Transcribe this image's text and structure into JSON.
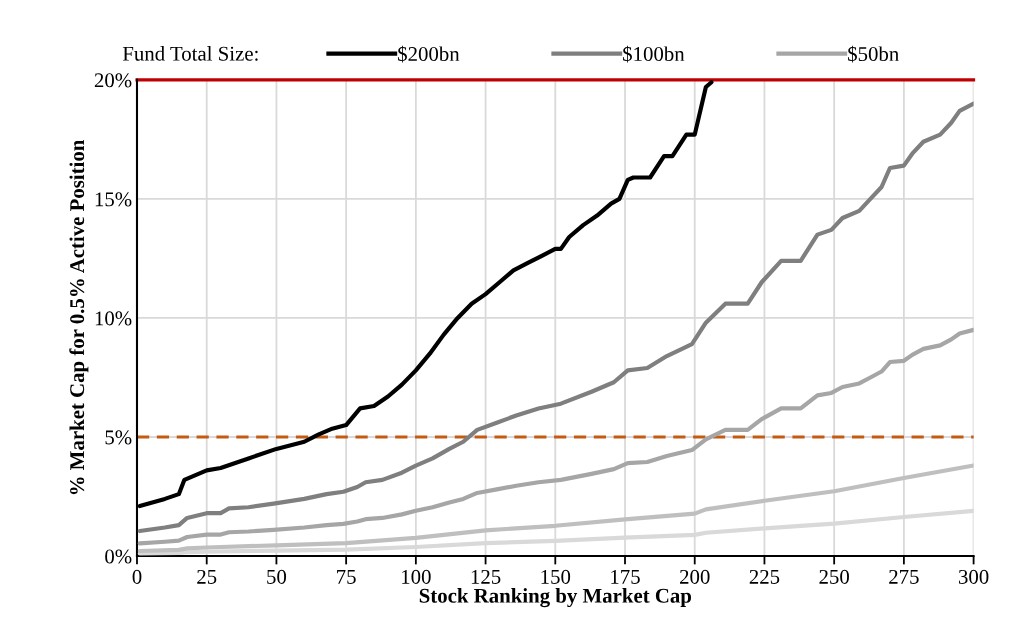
{
  "chart_data": {
    "type": "line",
    "xlabel": "Stock Ranking by Market Cap",
    "ylabel": "% Market Cap for 0.5% Active Position",
    "legend_title": "Fund Total Size:",
    "legend": "top",
    "xlim": [
      0,
      300
    ],
    "xticks": [
      0,
      25,
      50,
      75,
      100,
      125,
      150,
      175,
      200,
      225,
      250,
      275,
      300
    ],
    "ylim": [
      0,
      20
    ],
    "yticks": [
      {
        "value": 0,
        "label": "0%"
      },
      {
        "value": 5,
        "label": "5%"
      },
      {
        "value": 10,
        "label": "10%"
      },
      {
        "value": 15,
        "label": "15%"
      },
      {
        "value": 20,
        "label": "20%"
      }
    ],
    "grid": true,
    "marker": "none",
    "line_style": "solid",
    "ref_lines": [
      {
        "axis": "y",
        "value": 20,
        "label": null,
        "color": "#c00000",
        "line_style": "solid"
      },
      {
        "axis": "y",
        "value": 5,
        "label": null,
        "color": "#c55a11",
        "line_style": "dashed"
      }
    ],
    "series": [
      {
        "name": "$200bn",
        "color": "#000000",
        "x": [
          1,
          10,
          15,
          17,
          25,
          30,
          35,
          40,
          50,
          60,
          65,
          70,
          75,
          80,
          85,
          90,
          95,
          100,
          105,
          110,
          115,
          120,
          125,
          130,
          135,
          140,
          145,
          150,
          152,
          155,
          160,
          165,
          170,
          173,
          176,
          178,
          184,
          189,
          192,
          197,
          200,
          204,
          206
        ],
        "values": [
          2.1,
          2.4,
          2.6,
          3.2,
          3.6,
          3.7,
          3.9,
          4.1,
          4.5,
          4.8,
          5.1,
          5.35,
          5.5,
          6.2,
          6.3,
          6.7,
          7.2,
          7.8,
          8.5,
          9.3,
          10.0,
          10.6,
          11.0,
          11.5,
          12.0,
          12.3,
          12.6,
          12.9,
          12.9,
          13.4,
          13.9,
          14.3,
          14.8,
          15.0,
          15.8,
          15.9,
          15.9,
          16.8,
          16.8,
          17.7,
          17.7,
          19.7,
          19.9
        ]
      },
      {
        "name": "$100bn",
        "color": "#7f7f7f",
        "x": [
          1,
          10,
          15,
          18,
          25,
          30,
          33,
          40,
          49,
          60,
          68,
          74,
          79,
          82,
          88,
          95,
          100,
          106,
          112,
          117,
          122,
          129,
          136,
          144,
          152,
          163,
          171,
          176,
          183,
          190,
          199,
          204,
          211,
          219,
          224,
          231,
          238,
          244,
          249,
          253,
          259,
          263,
          267,
          270,
          275,
          278,
          282,
          288,
          292,
          295,
          300
        ],
        "values": [
          1.05,
          1.2,
          1.3,
          1.6,
          1.8,
          1.8,
          2.0,
          2.05,
          2.2,
          2.4,
          2.6,
          2.7,
          2.9,
          3.1,
          3.2,
          3.5,
          3.8,
          4.1,
          4.5,
          4.8,
          5.3,
          5.6,
          5.9,
          6.2,
          6.4,
          6.9,
          7.3,
          7.8,
          7.9,
          8.4,
          8.9,
          9.8,
          10.6,
          10.6,
          11.5,
          12.4,
          12.4,
          13.5,
          13.7,
          14.2,
          14.5,
          15.0,
          15.5,
          16.3,
          16.4,
          16.9,
          17.4,
          17.7,
          18.2,
          18.7,
          19.0
        ]
      },
      {
        "name": "$50bn",
        "color": "#a6a6a6",
        "x": [
          1,
          10,
          15,
          18,
          25,
          30,
          33,
          40,
          49,
          60,
          68,
          74,
          79,
          82,
          88,
          95,
          100,
          106,
          112,
          117,
          122,
          129,
          136,
          144,
          152,
          163,
          171,
          176,
          183,
          190,
          199,
          204,
          211,
          219,
          224,
          231,
          238,
          244,
          249,
          253,
          259,
          263,
          267,
          270,
          275,
          278,
          282,
          288,
          292,
          295,
          300
        ],
        "values": [
          0.53,
          0.6,
          0.65,
          0.8,
          0.9,
          0.9,
          1.0,
          1.03,
          1.1,
          1.2,
          1.3,
          1.35,
          1.45,
          1.55,
          1.6,
          1.75,
          1.9,
          2.05,
          2.25,
          2.4,
          2.65,
          2.8,
          2.95,
          3.1,
          3.2,
          3.45,
          3.65,
          3.9,
          3.95,
          4.2,
          4.45,
          4.9,
          5.3,
          5.3,
          5.75,
          6.2,
          6.2,
          6.75,
          6.85,
          7.1,
          7.25,
          7.5,
          7.75,
          8.15,
          8.2,
          8.45,
          8.7,
          8.85,
          9.1,
          9.35,
          9.5
        ]
      },
      {
        "color": "#bfbfbf",
        "x": [
          1,
          15,
          18,
          25,
          50,
          75,
          100,
          125,
          150,
          175,
          200,
          204,
          225,
          250,
          275,
          300
        ],
        "values": [
          0.21,
          0.26,
          0.32,
          0.36,
          0.45,
          0.54,
          0.76,
          1.08,
          1.27,
          1.54,
          1.78,
          1.96,
          2.32,
          2.72,
          3.28,
          3.8
        ]
      },
      {
        "color": "#d9d9d9",
        "x": [
          1,
          15,
          18,
          25,
          50,
          75,
          100,
          125,
          150,
          175,
          200,
          204,
          225,
          250,
          275,
          300
        ],
        "values": [
          0.11,
          0.13,
          0.16,
          0.18,
          0.23,
          0.27,
          0.38,
          0.54,
          0.64,
          0.77,
          0.89,
          0.98,
          1.16,
          1.36,
          1.64,
          1.9
        ]
      }
    ]
  }
}
